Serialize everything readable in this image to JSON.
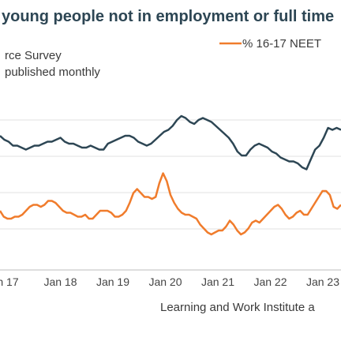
{
  "chart_data": {
    "type": "line",
    "title": "young people not in employment or full time",
    "subtitle_1": "rce Survey",
    "subtitle_2": "published monthly",
    "source": "Learning and Work Institute a",
    "x_ticks": [
      "n 17",
      "Jan 18",
      "Jan 19",
      "Jan 20",
      "Jan 21",
      "Jan 22",
      "Jan 23"
    ],
    "grid": true,
    "legend_position": "top-right",
    "y_range": [
      0,
      100
    ],
    "series": [
      {
        "name": "",
        "color": "#2d4654",
        "values": [
          68,
          66,
          65,
          63,
          63,
          62,
          61,
          62,
          63,
          63,
          64,
          65,
          65,
          66,
          67,
          65,
          64,
          64,
          63,
          62,
          62,
          63,
          62,
          61,
          61,
          64,
          65,
          66,
          67,
          68,
          68,
          67,
          65,
          64,
          63,
          64,
          66,
          68,
          70,
          71,
          73,
          76,
          78,
          77,
          75,
          74,
          76,
          77,
          76,
          75,
          73,
          71,
          69,
          67,
          64,
          60,
          58,
          58,
          61,
          63,
          64,
          63,
          62,
          60,
          59,
          57,
          56,
          55,
          55,
          54,
          52,
          51,
          56,
          61,
          63,
          67,
          72,
          71,
          72,
          71
        ]
      },
      {
        "name": "% 16-17 NEET",
        "color": "#f07c2c",
        "values": [
          30,
          27,
          26,
          26,
          27,
          27,
          28,
          30,
          32,
          33,
          33,
          32,
          33,
          35,
          35,
          34,
          32,
          30,
          29,
          29,
          28,
          27,
          27,
          28,
          26,
          26,
          28,
          30,
          30,
          30,
          29,
          27,
          27,
          28,
          30,
          34,
          39,
          41,
          39,
          37,
          37,
          36,
          37,
          44,
          49,
          45,
          38,
          34,
          31,
          29,
          28,
          28,
          27,
          26,
          23,
          21,
          19,
          18,
          19,
          20,
          20,
          22,
          25,
          23,
          20,
          18,
          19,
          21,
          24,
          25,
          24,
          26,
          28,
          30,
          32,
          33,
          31,
          28,
          26,
          27,
          29,
          30,
          28,
          28,
          31,
          34,
          37,
          40,
          40,
          38,
          32,
          31,
          33
        ]
      }
    ]
  }
}
